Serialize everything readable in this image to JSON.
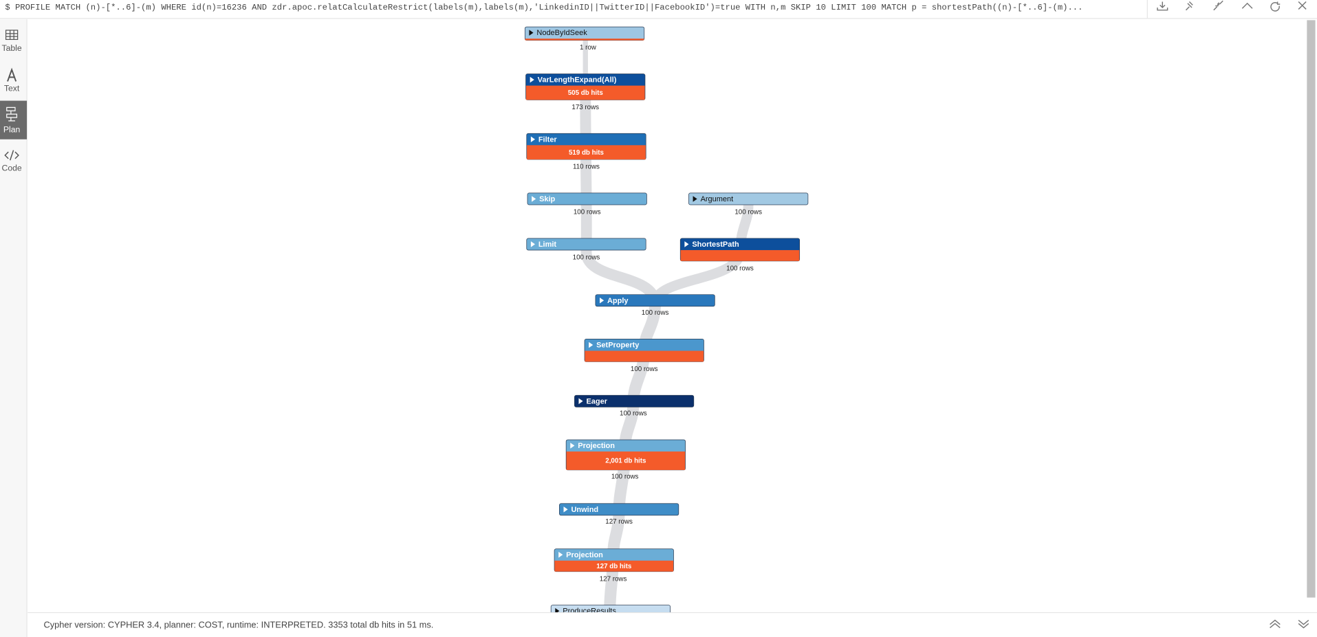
{
  "query": "$ PROFILE MATCH (n)-[*..6]-(m) WHERE id(n)=16236 AND zdr.apoc.relatCalculateRestrict(labels(m),labels(m),'LinkedinID||TwitterID||FacebookID')=true WITH n,m SKIP 10 LIMIT 100 MATCH p = shortestPath((n)-[*..6]-(m)...",
  "tabs": [
    "Table",
    "Text",
    "Plan",
    "Code"
  ],
  "plan": {
    "nodes": [
      {
        "label": "NodeByIdSeek",
        "rows": "1 row",
        "color": "#9ec6e2"
      },
      {
        "label": "VarLengthExpand(All)",
        "hits": "505 db hits",
        "rows": "173 rows",
        "color": "#0d4f9c"
      },
      {
        "label": "Filter",
        "hits": "519 db hits",
        "rows": "110 rows",
        "color": "#1f6fb6"
      },
      {
        "label": "Skip",
        "rows": "100 rows",
        "color": "#6badd6"
      },
      {
        "label": "Argument",
        "rows": "100 rows",
        "color": "#a2c9e3"
      },
      {
        "label": "Limit",
        "rows": "100 rows",
        "color": "#6badd6"
      },
      {
        "label": "ShortestPath",
        "rows": "100 rows",
        "color": "#0d4f9c"
      },
      {
        "label": "Apply",
        "rows": "100 rows",
        "color": "#2a78bc"
      },
      {
        "label": "SetProperty",
        "rows": "100 rows",
        "color": "#4b97cd"
      },
      {
        "label": "Eager",
        "rows": "100 rows",
        "color": "#0b306c"
      },
      {
        "label": "Projection",
        "hits": "2,001 db hits",
        "rows": "100 rows",
        "color": "#6badd6"
      },
      {
        "label": "Unwind",
        "rows": "127 rows",
        "color": "#3f8dc7"
      },
      {
        "label": "Projection",
        "hits": "127 db hits",
        "rows": "127 rows",
        "color": "#6badd6"
      },
      {
        "label": "ProduceResults",
        "color": "#c6ddf0"
      }
    ]
  },
  "footer": "Cypher version: CYPHER 3.4, planner: COST, runtime: INTERPRETED. 3353 total db hits in 51 ms."
}
